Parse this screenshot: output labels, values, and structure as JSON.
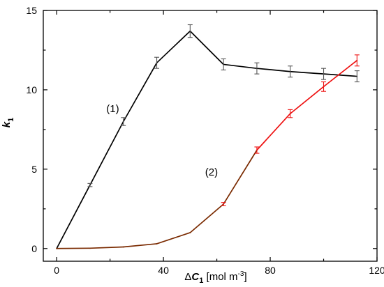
{
  "chart_data": {
    "type": "line",
    "xlabel": {
      "prefix": "Δ",
      "var": "C",
      "sub": "1",
      "unit_pre": " [mol m",
      "unit_sup": "-3",
      "unit_post": "]"
    },
    "ylabel": {
      "var": "k",
      "sub": "1"
    },
    "xlim": [
      -5,
      120
    ],
    "ylim": [
      -0.8,
      15
    ],
    "xticks": [
      "0",
      "40",
      "80",
      "120"
    ],
    "xtick_values": [
      0,
      40,
      80,
      120
    ],
    "yticks": [
      "0",
      "5",
      "10",
      "15"
    ],
    "ytick_values": [
      0,
      5,
      10,
      15
    ],
    "grid": false,
    "series": [
      {
        "name": "(1)",
        "color": "#000000",
        "error_color": "#555555",
        "x": [
          0,
          12.5,
          25,
          37.5,
          50,
          62.5,
          75,
          87.5,
          100,
          112.5
        ],
        "y": [
          0.0,
          4.0,
          8.0,
          11.7,
          13.7,
          11.6,
          11.35,
          11.15,
          11.0,
          10.85
        ],
        "err": [
          0.0,
          0.1,
          0.25,
          0.35,
          0.4,
          0.35,
          0.35,
          0.35,
          0.35,
          0.35
        ]
      },
      {
        "name": "(2)",
        "color_low": "#7a2a00",
        "color_high": "#ee1111",
        "error_color": "#ee1111",
        "x": [
          0,
          12.5,
          25,
          37.5,
          50,
          62.5,
          75,
          87.5,
          100,
          112.5
        ],
        "y": [
          0.0,
          0.02,
          0.1,
          0.3,
          1.0,
          2.8,
          6.2,
          8.5,
          10.2,
          11.85
        ],
        "err": [
          0.0,
          0.0,
          0.0,
          0.0,
          0.0,
          0.1,
          0.2,
          0.25,
          0.3,
          0.35
        ]
      }
    ],
    "annotations": [
      {
        "text": "(1)",
        "x": 21,
        "y": 8.6
      },
      {
        "text": "(2)",
        "x": 58,
        "y": 4.6
      }
    ]
  }
}
